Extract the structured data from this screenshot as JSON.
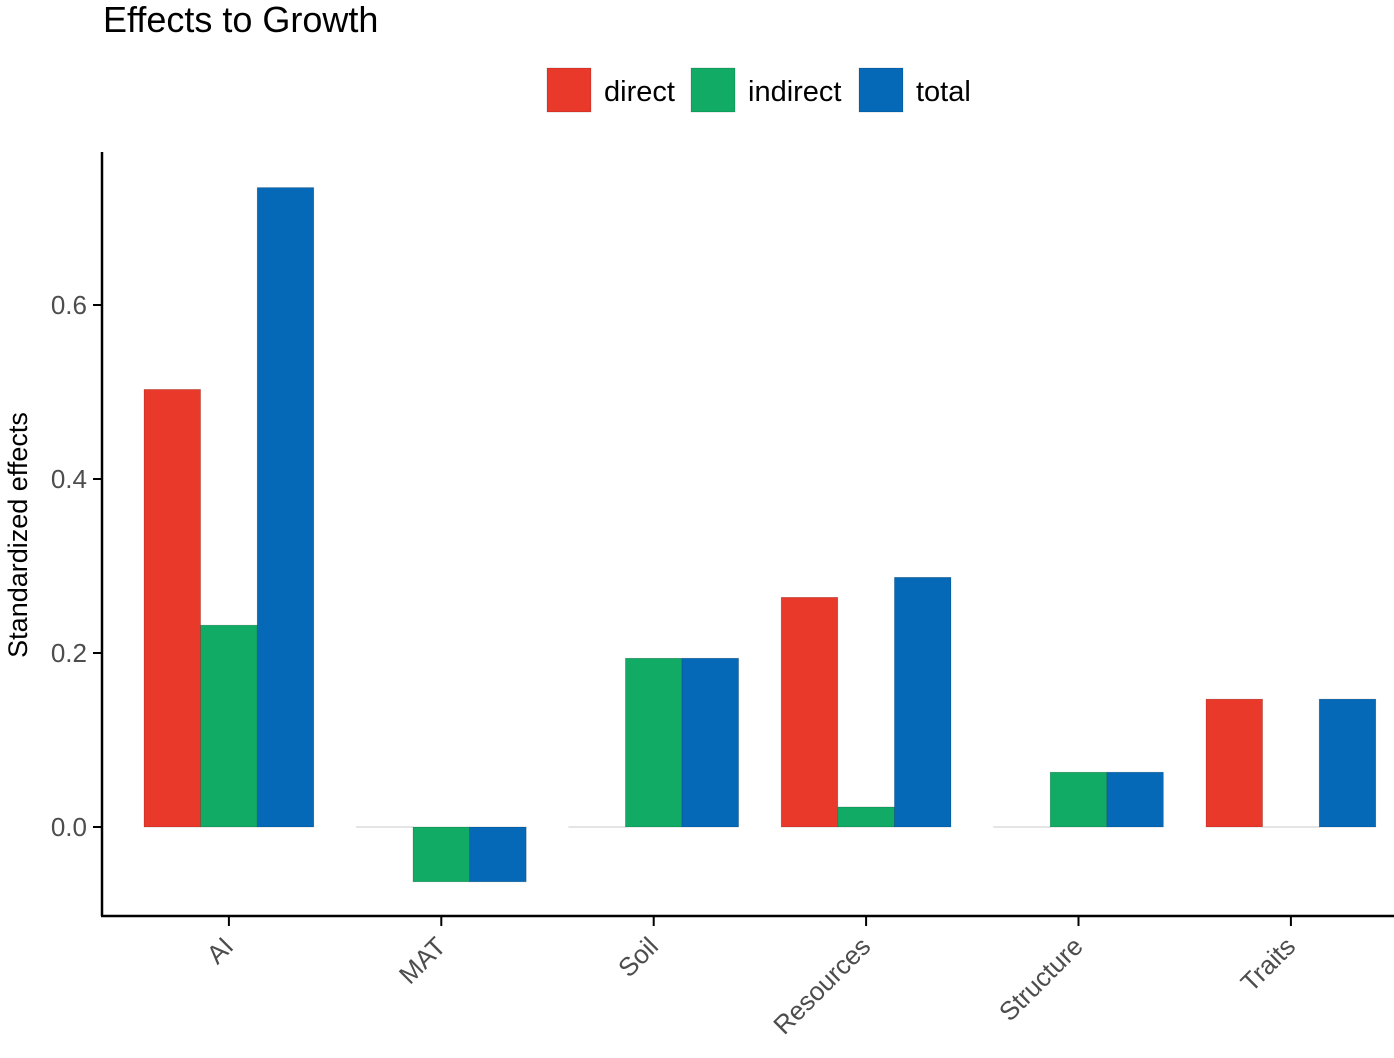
{
  "chart_data": {
    "type": "bar",
    "title": "Effects to Growth",
    "xlabel": "",
    "ylabel": "Standardized effects",
    "categories": [
      "AI",
      "MAT",
      "Soil",
      "Resources",
      "Structure",
      "Traits"
    ],
    "series": [
      {
        "name": "direct",
        "color": "#e8392b",
        "values": [
          0.503,
          0.0,
          0.0,
          0.264,
          0.0,
          0.147
        ]
      },
      {
        "name": "indirect",
        "color": "#12ab66",
        "values": [
          0.232,
          -0.063,
          0.194,
          0.023,
          0.063,
          0.0
        ]
      },
      {
        "name": "total",
        "color": "#0569b8",
        "values": [
          0.735,
          -0.063,
          0.194,
          0.287,
          0.063,
          0.147
        ]
      }
    ],
    "ylim": [
      -0.102,
      0.775
    ],
    "yticks": [
      0.0,
      0.2,
      0.4,
      0.6
    ],
    "ytick_labels": [
      "0.0",
      "0.2",
      "0.4",
      "0.6"
    ],
    "grid": false,
    "legend_position": "top"
  }
}
